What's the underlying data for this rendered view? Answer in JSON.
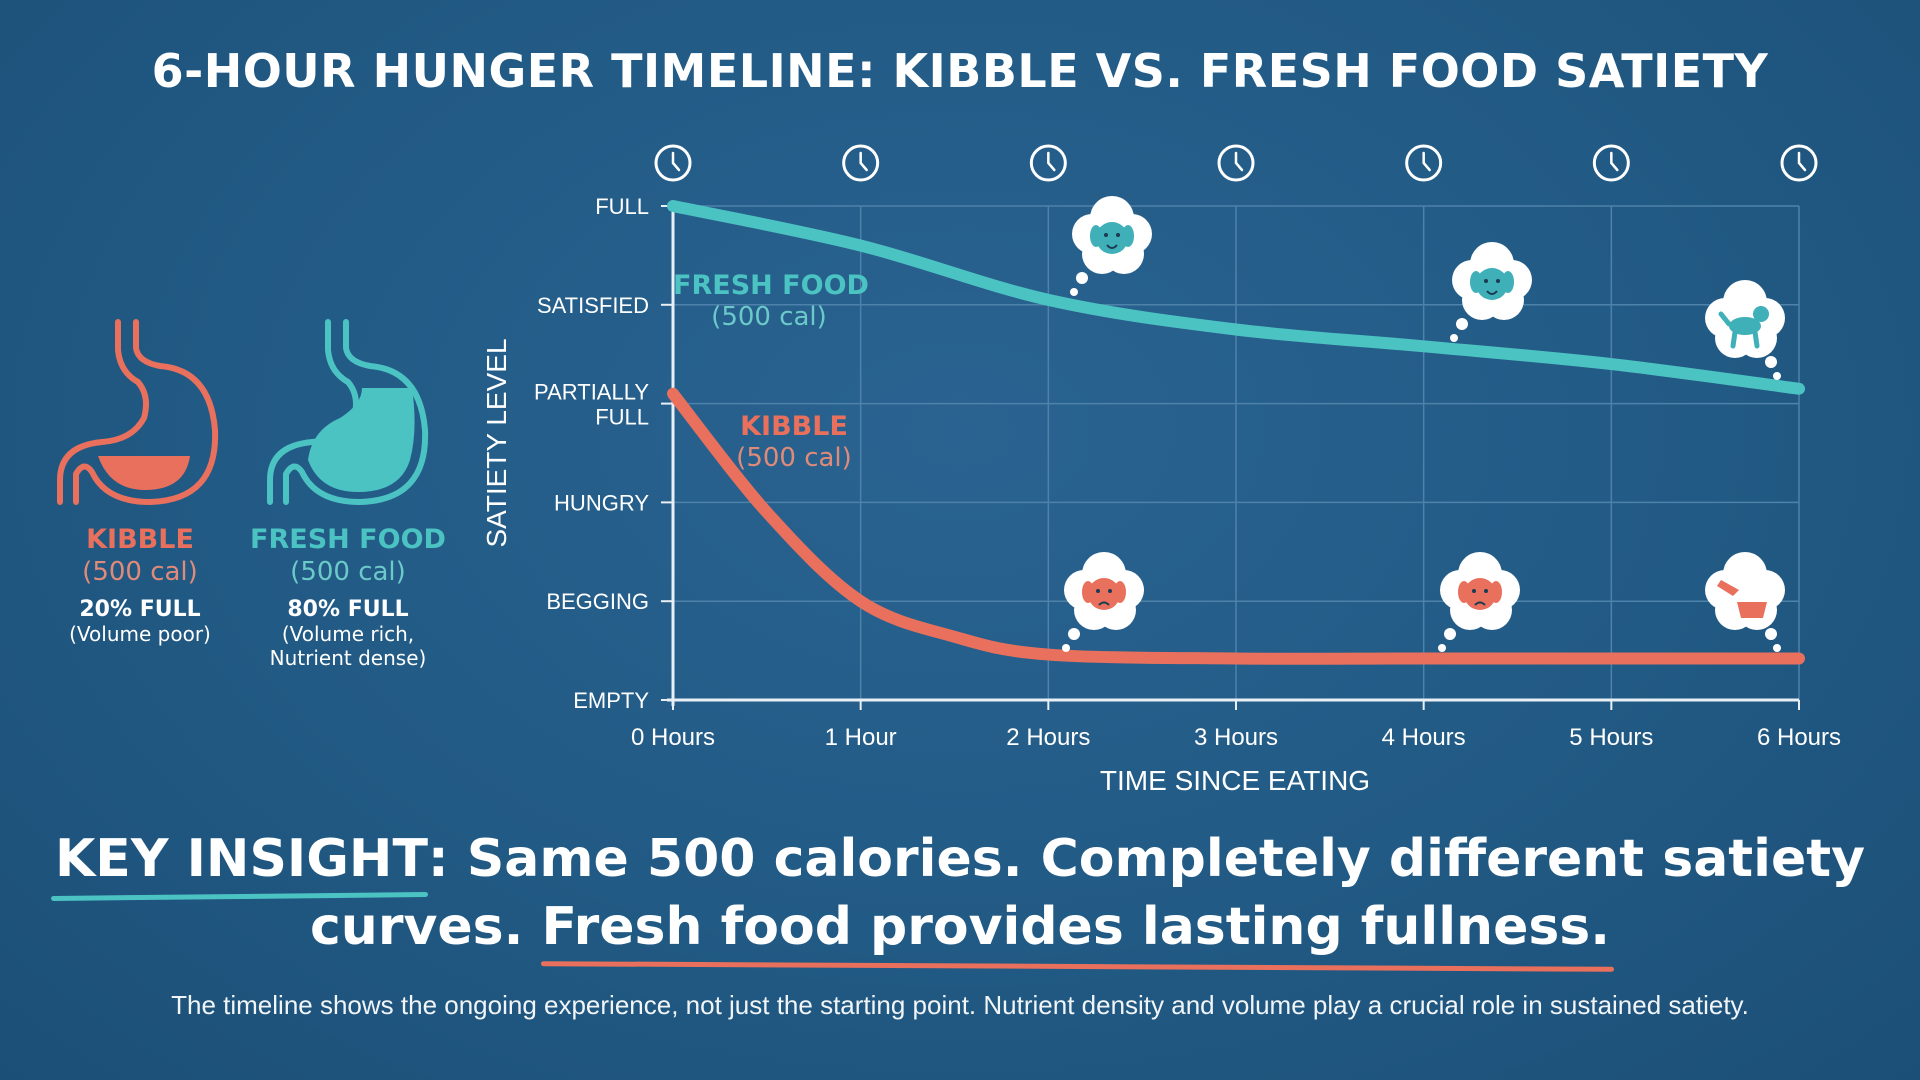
{
  "title": "6-HOUR HUNGER TIMELINE: KIBBLE VS. FRESH FOOD SATIETY",
  "colors": {
    "background": "#215a84",
    "kibble": "#e8705c",
    "fresh": "#4cc3c3",
    "grid": "#4d82aa",
    "text": "#ffffff"
  },
  "stomachs": [
    {
      "name": "KIBBLE",
      "calories": "(500 cal)",
      "fill_label": "20% FULL",
      "note_lines": [
        "(Volume poor)"
      ],
      "fill_fraction": 0.2,
      "color": "#e8705c"
    },
    {
      "name": "FRESH FOOD",
      "calories": "(500 cal)",
      "fill_label": "80% FULL",
      "note_lines": [
        "(Volume rich,",
        "Nutrient dense)"
      ],
      "fill_fraction": 0.8,
      "color": "#4cc3c3"
    }
  ],
  "chart_data": {
    "type": "line",
    "xlabel": "TIME SINCE EATING",
    "ylabel": "SATIETY LEVEL",
    "x_tick_labels": [
      "0 Hours",
      "1 Hour",
      "2 Hours",
      "3 Hours",
      "4 Hours",
      "5 Hours",
      "6 Hours"
    ],
    "y_tick_labels": [
      "EMPTY",
      "BEGGING",
      "HUNGRY",
      "PARTIALLY FULL",
      "SATISFIED",
      "FULL"
    ],
    "xlim": [
      0,
      6
    ],
    "ylim": [
      0,
      5
    ],
    "grid": true,
    "series": [
      {
        "name": "FRESH FOOD",
        "sublabel": "(500 cal)",
        "color": "#4cc3c3",
        "x": [
          0,
          1,
          2,
          3,
          4,
          5,
          6
        ],
        "y": [
          5.0,
          4.6,
          4.05,
          3.75,
          3.58,
          3.4,
          3.15
        ]
      },
      {
        "name": "KIBBLE",
        "sublabel": "(500 cal)",
        "color": "#e8705c",
        "x": [
          0,
          0.5,
          1,
          1.5,
          2,
          3,
          4,
          5,
          6
        ],
        "y": [
          3.1,
          1.9,
          1.0,
          0.64,
          0.46,
          0.42,
          0.42,
          0.42,
          0.42
        ]
      }
    ],
    "thought_bubbles": [
      {
        "x": 2.2,
        "series": "FRESH FOOD",
        "icon": "happy-dog-icon"
      },
      {
        "x": 4.2,
        "series": "FRESH FOOD",
        "icon": "happy-dog-icon"
      },
      {
        "x": 6.0,
        "series": "FRESH FOOD",
        "icon": "playful-dog-icon"
      },
      {
        "x": 2.2,
        "series": "KIBBLE",
        "icon": "sad-dog-icon"
      },
      {
        "x": 4.2,
        "series": "KIBBLE",
        "icon": "sad-dog-icon"
      },
      {
        "x": 6.0,
        "series": "KIBBLE",
        "icon": "empty-bowl-icon"
      }
    ],
    "clock_icons": "clock-icon"
  },
  "insight": {
    "lead": "KEY INSIGHT",
    "line1_rest": ": Same 500 calories. Completely different satiety",
    "line2_start": "curves. ",
    "line2_emph": "Fresh food provides lasting fullness."
  },
  "footer": "The timeline shows the ongoing experience, not just the starting point. Nutrient density and volume play a crucial role in sustained satiety."
}
